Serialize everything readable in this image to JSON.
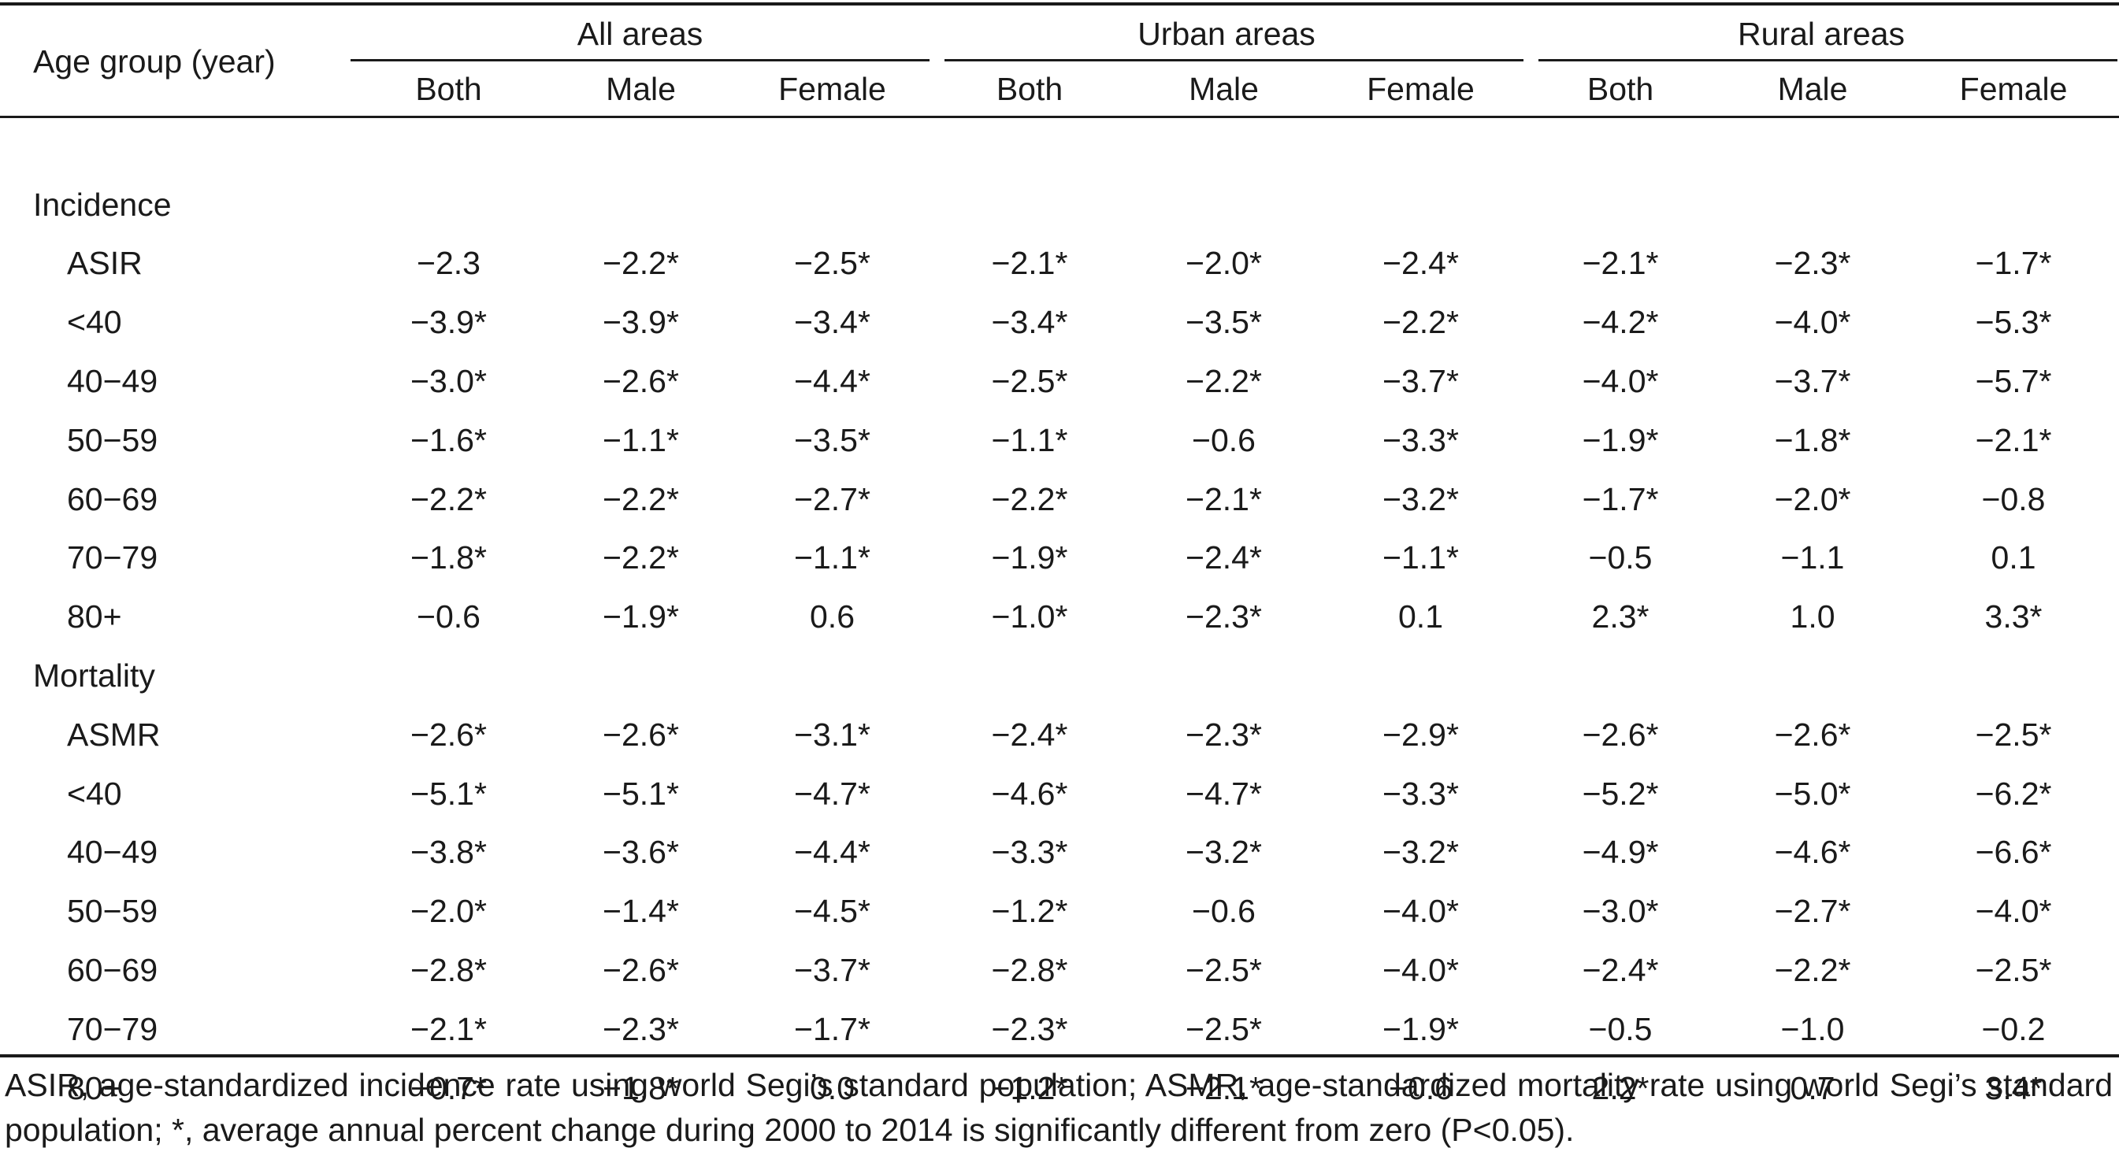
{
  "table": {
    "corner_header": "Age group (year)",
    "groups": [
      "All areas",
      "Urban areas",
      "Rural areas"
    ],
    "subheaders": [
      "Both",
      "Male",
      "Female",
      "Both",
      "Male",
      "Female",
      "Both",
      "Male",
      "Female"
    ],
    "sections": [
      {
        "label": "Incidence",
        "rows": [
          {
            "label": "ASIR",
            "values": [
              "−2.3",
              "−2.2*",
              "−2.5*",
              "−2.1*",
              "−2.0*",
              "−2.4*",
              "−2.1*",
              "−2.3*",
              "−1.7*"
            ]
          },
          {
            "label": "<40",
            "values": [
              "−3.9*",
              "−3.9*",
              "−3.4*",
              "−3.4*",
              "−3.5*",
              "−2.2*",
              "−4.2*",
              "−4.0*",
              "−5.3*"
            ]
          },
          {
            "label": "40−49",
            "values": [
              "−3.0*",
              "−2.6*",
              "−4.4*",
              "−2.5*",
              "−2.2*",
              "−3.7*",
              "−4.0*",
              "−3.7*",
              "−5.7*"
            ]
          },
          {
            "label": "50−59",
            "values": [
              "−1.6*",
              "−1.1*",
              "−3.5*",
              "−1.1*",
              "−0.6",
              "−3.3*",
              "−1.9*",
              "−1.8*",
              "−2.1*"
            ]
          },
          {
            "label": "60−69",
            "values": [
              "−2.2*",
              "−2.2*",
              "−2.7*",
              "−2.2*",
              "−2.1*",
              "−3.2*",
              "−1.7*",
              "−2.0*",
              "−0.8"
            ]
          },
          {
            "label": "70−79",
            "values": [
              "−1.8*",
              "−2.2*",
              "−1.1*",
              "−1.9*",
              "−2.4*",
              "−1.1*",
              "−0.5",
              "−1.1",
              "0.1"
            ]
          },
          {
            "label": "80+",
            "values": [
              "−0.6",
              "−1.9*",
              "0.6",
              "−1.0*",
              "−2.3*",
              "0.1",
              "2.3*",
              "1.0",
              "3.3*"
            ]
          }
        ]
      },
      {
        "label": "Mortality",
        "rows": [
          {
            "label": "ASMR",
            "values": [
              "−2.6*",
              "−2.6*",
              "−3.1*",
              "−2.4*",
              "−2.3*",
              "−2.9*",
              "−2.6*",
              "−2.6*",
              "−2.5*"
            ]
          },
          {
            "label": "<40",
            "values": [
              "−5.1*",
              "−5.1*",
              "−4.7*",
              "−4.6*",
              "−4.7*",
              "−3.3*",
              "−5.2*",
              "−5.0*",
              "−6.2*"
            ]
          },
          {
            "label": "40−49",
            "values": [
              "−3.8*",
              "−3.6*",
              "−4.4*",
              "−3.3*",
              "−3.2*",
              "−3.2*",
              "−4.9*",
              "−4.6*",
              "−6.6*"
            ]
          },
          {
            "label": "50−59",
            "values": [
              "−2.0*",
              "−1.4*",
              "−4.5*",
              "−1.2*",
              "−0.6",
              "−4.0*",
              "−3.0*",
              "−2.7*",
              "−4.0*"
            ]
          },
          {
            "label": "60−69",
            "values": [
              "−2.8*",
              "−2.6*",
              "−3.7*",
              "−2.8*",
              "−2.5*",
              "−4.0*",
              "−2.4*",
              "−2.2*",
              "−2.5*"
            ]
          },
          {
            "label": "70−79",
            "values": [
              "−2.1*",
              "−2.3*",
              "−1.7*",
              "−2.3*",
              "−2.5*",
              "−1.9*",
              "−0.5",
              "−1.0",
              "−0.2"
            ]
          },
          {
            "label": "80+",
            "values": [
              "−0.7*",
              "−1.8*",
              "0.0",
              "−1.2*",
              "−2.1*",
              "−0.6",
              "2.2*",
              "0.7",
              "3.4*"
            ]
          }
        ]
      }
    ]
  },
  "footnote": "ASIR, age-standardized incidence rate using world Segi’s standard population; ASMR, age-standardized mortality rate using world Segi’s standard population; *, average annual percent change during 2000 to 2014 is significantly different from zero (P<0.05)."
}
